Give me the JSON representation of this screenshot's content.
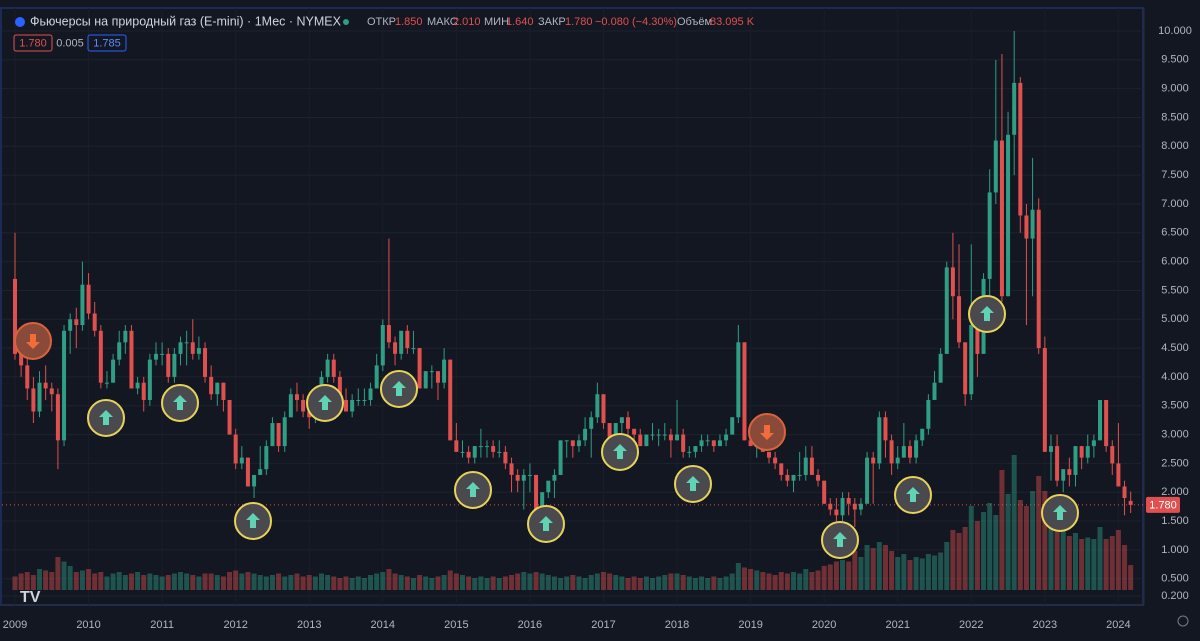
{
  "chart_data": {
    "type": "candlestick",
    "title": "Фьючерсы на природный газ (E-mini) · 1Мес · NYMEX",
    "legend": {
      "open_label": "ОТКР",
      "open": "1.850",
      "high_label": "МАКС",
      "high": "2.010",
      "low_label": "МИН",
      "low": "1.640",
      "close_label": "ЗАКР",
      "close": "1.780",
      "change": "−0.080 (−4.30%)",
      "volume_label": "Объём",
      "volume": "83.095 K"
    },
    "boxes": [
      "1.780",
      "0.005",
      "1.785"
    ],
    "last_price": {
      "value": 1.78,
      "label": "1.780"
    },
    "up_color": "#2f9e84",
    "down_color": "#e0504e",
    "yticks": [
      {
        "value": 10,
        "label": "10.000"
      },
      {
        "value": 9.5,
        "label": "9.500"
      },
      {
        "value": 9,
        "label": "9.000"
      },
      {
        "value": 8.5,
        "label": "8.500"
      },
      {
        "value": 8,
        "label": "8.000"
      },
      {
        "value": 7.5,
        "label": "7.500"
      },
      {
        "value": 7,
        "label": "7.000"
      },
      {
        "value": 6.5,
        "label": "6.500"
      },
      {
        "value": 6,
        "label": "6.000"
      },
      {
        "value": 5.5,
        "label": "5.500"
      },
      {
        "value": 5,
        "label": "5.000"
      },
      {
        "value": 4.5,
        "label": "4.500"
      },
      {
        "value": 4,
        "label": "4.000"
      },
      {
        "value": 3.5,
        "label": "3.500"
      },
      {
        "value": 3,
        "label": "3.000"
      },
      {
        "value": 2.5,
        "label": "2.500"
      },
      {
        "value": 2,
        "label": "2.000"
      },
      {
        "value": 1.5,
        "label": "1.500"
      },
      {
        "value": 1,
        "label": "1.000"
      },
      {
        "value": 0.5,
        "label": "0.500"
      },
      {
        "value": 0.2,
        "label": "0.200"
      }
    ],
    "ylim": [
      0.2,
      10
    ],
    "xticks": [
      2009,
      2010,
      2011,
      2012,
      2013,
      2014,
      2015,
      2016,
      2017,
      2018,
      2019,
      2020,
      2021,
      2022,
      2023,
      2024
    ],
    "candles": [
      [
        5.7,
        6.5,
        4.3,
        4.4
      ],
      [
        4.4,
        4.7,
        4.0,
        4.2
      ],
      [
        4.2,
        4.4,
        3.6,
        3.8
      ],
      [
        3.8,
        4.0,
        3.2,
        3.4
      ],
      [
        3.4,
        4.1,
        3.3,
        3.9
      ],
      [
        3.9,
        4.2,
        3.6,
        3.8
      ],
      [
        3.8,
        3.9,
        3.4,
        3.7
      ],
      [
        3.7,
        3.8,
        2.4,
        2.9
      ],
      [
        2.9,
        4.9,
        2.8,
        4.8
      ],
      [
        4.8,
        5.1,
        4.4,
        5.0
      ],
      [
        5.0,
        5.2,
        4.5,
        4.9
      ],
      [
        4.9,
        6.0,
        4.8,
        5.6
      ],
      [
        5.6,
        5.8,
        5.0,
        5.1
      ],
      [
        5.1,
        5.3,
        4.7,
        4.8
      ],
      [
        4.8,
        4.9,
        3.8,
        3.9
      ],
      [
        3.9,
        4.1,
        3.8,
        3.9
      ],
      [
        3.9,
        4.4,
        3.9,
        4.3
      ],
      [
        4.3,
        4.8,
        4.2,
        4.6
      ],
      [
        4.6,
        4.9,
        4.4,
        4.8
      ],
      [
        4.8,
        4.9,
        3.8,
        3.8
      ],
      [
        3.8,
        4.0,
        3.7,
        3.9
      ],
      [
        3.9,
        4.0,
        3.4,
        3.6
      ],
      [
        3.6,
        4.4,
        3.5,
        4.3
      ],
      [
        4.3,
        4.6,
        4.2,
        4.4
      ],
      [
        4.4,
        4.6,
        4.2,
        4.4
      ],
      [
        4.4,
        4.5,
        3.9,
        4.0
      ],
      [
        4.0,
        4.5,
        3.9,
        4.4
      ],
      [
        4.4,
        4.7,
        4.2,
        4.6
      ],
      [
        4.6,
        4.8,
        4.2,
        4.6
      ],
      [
        4.6,
        5.0,
        4.3,
        4.4
      ],
      [
        4.4,
        4.7,
        4.3,
        4.5
      ],
      [
        4.5,
        4.6,
        3.9,
        4.0
      ],
      [
        4.0,
        4.2,
        3.6,
        3.7
      ],
      [
        3.7,
        3.9,
        3.5,
        3.9
      ],
      [
        3.9,
        3.9,
        3.4,
        3.6
      ],
      [
        3.6,
        3.6,
        3.0,
        3.0
      ],
      [
        3.0,
        3.1,
        2.4,
        2.5
      ],
      [
        2.5,
        2.8,
        2.4,
        2.6
      ],
      [
        2.6,
        2.6,
        2.1,
        2.1
      ],
      [
        2.1,
        2.3,
        1.9,
        2.3
      ],
      [
        2.3,
        2.8,
        2.3,
        2.4
      ],
      [
        2.4,
        2.9,
        2.3,
        2.8
      ],
      [
        2.8,
        3.3,
        2.8,
        3.2
      ],
      [
        3.2,
        3.2,
        2.7,
        2.8
      ],
      [
        2.8,
        3.4,
        2.7,
        3.3
      ],
      [
        3.3,
        3.8,
        3.3,
        3.7
      ],
      [
        3.7,
        3.9,
        3.4,
        3.6
      ],
      [
        3.6,
        3.7,
        3.3,
        3.4
      ],
      [
        3.4,
        3.6,
        3.1,
        3.3
      ],
      [
        3.3,
        3.6,
        3.2,
        3.5
      ],
      [
        3.5,
        4.1,
        3.4,
        4.0
      ],
      [
        4.0,
        4.4,
        3.9,
        4.3
      ],
      [
        4.3,
        4.4,
        3.9,
        4.0
      ],
      [
        4.0,
        4.1,
        3.6,
        3.6
      ],
      [
        3.6,
        3.8,
        3.4,
        3.4
      ],
      [
        3.4,
        3.7,
        3.3,
        3.6
      ],
      [
        3.6,
        3.8,
        3.5,
        3.6
      ],
      [
        3.6,
        3.8,
        3.5,
        3.6
      ],
      [
        3.6,
        3.9,
        3.5,
        3.8
      ],
      [
        3.8,
        4.4,
        3.8,
        4.2
      ],
      [
        4.2,
        5.0,
        4.1,
        4.9
      ],
      [
        4.9,
        6.4,
        4.5,
        4.6
      ],
      [
        4.6,
        4.7,
        4.2,
        4.4
      ],
      [
        4.4,
        4.8,
        4.3,
        4.8
      ],
      [
        4.8,
        4.9,
        4.4,
        4.5
      ],
      [
        4.5,
        4.8,
        4.4,
        4.5
      ],
      [
        4.5,
        4.5,
        3.8,
        3.8
      ],
      [
        3.8,
        4.1,
        3.8,
        4.1
      ],
      [
        4.1,
        4.2,
        3.8,
        4.1
      ],
      [
        4.1,
        4.1,
        3.6,
        3.9
      ],
      [
        3.9,
        4.5,
        3.8,
        4.3
      ],
      [
        4.3,
        4.3,
        2.9,
        2.9
      ],
      [
        2.9,
        3.2,
        2.7,
        2.7
      ],
      [
        2.7,
        2.9,
        2.6,
        2.7
      ],
      [
        2.7,
        2.8,
        2.5,
        2.6
      ],
      [
        2.6,
        2.8,
        2.5,
        2.8
      ],
      [
        2.8,
        3.1,
        2.6,
        2.8
      ],
      [
        2.8,
        2.9,
        2.6,
        2.8
      ],
      [
        2.8,
        2.9,
        2.6,
        2.7
      ],
      [
        2.7,
        2.9,
        2.6,
        2.7
      ],
      [
        2.7,
        2.8,
        2.4,
        2.5
      ],
      [
        2.5,
        2.6,
        2.0,
        2.3
      ],
      [
        2.3,
        2.4,
        2.0,
        2.2
      ],
      [
        2.2,
        2.4,
        1.7,
        2.3
      ],
      [
        2.3,
        2.5,
        2.0,
        2.3
      ],
      [
        2.3,
        2.3,
        1.7,
        1.7
      ],
      [
        1.7,
        2.0,
        1.6,
        2.0
      ],
      [
        2.0,
        2.2,
        1.9,
        2.2
      ],
      [
        2.2,
        2.4,
        1.9,
        2.3
      ],
      [
        2.3,
        2.9,
        2.3,
        2.9
      ],
      [
        2.9,
        2.9,
        2.6,
        2.9
      ],
      [
        2.9,
        2.9,
        2.6,
        2.8
      ],
      [
        2.8,
        3.0,
        2.7,
        2.9
      ],
      [
        2.9,
        3.3,
        2.8,
        3.1
      ],
      [
        3.1,
        3.4,
        2.6,
        3.3
      ],
      [
        3.3,
        3.9,
        3.2,
        3.7
      ],
      [
        3.7,
        3.7,
        3.1,
        3.2
      ],
      [
        3.2,
        3.2,
        2.5,
        2.8
      ],
      [
        2.8,
        3.2,
        2.6,
        3.2
      ],
      [
        3.2,
        3.3,
        3.0,
        3.3
      ],
      [
        3.3,
        3.4,
        3.0,
        3.1
      ],
      [
        3.1,
        3.1,
        2.9,
        3.0
      ],
      [
        3.0,
        3.1,
        2.8,
        2.8
      ],
      [
        2.8,
        3.0,
        2.8,
        3.0
      ],
      [
        3.0,
        3.2,
        2.9,
        3.0
      ],
      [
        3.0,
        3.1,
        2.8,
        3.0
      ],
      [
        3.0,
        3.2,
        2.9,
        3.0
      ],
      [
        3.0,
        3.1,
        2.6,
        2.9
      ],
      [
        2.9,
        3.6,
        2.9,
        3.0
      ],
      [
        3.0,
        3.1,
        2.6,
        2.7
      ],
      [
        2.7,
        2.8,
        2.6,
        2.7
      ],
      [
        2.7,
        2.8,
        2.6,
        2.8
      ],
      [
        2.8,
        3.0,
        2.7,
        2.9
      ],
      [
        2.9,
        3.0,
        2.8,
        2.9
      ],
      [
        2.9,
        2.9,
        2.7,
        2.8
      ],
      [
        2.8,
        3.0,
        2.8,
        2.9
      ],
      [
        2.9,
        3.1,
        2.8,
        3.0
      ],
      [
        3.0,
        3.3,
        3.0,
        3.3
      ],
      [
        3.3,
        4.9,
        3.2,
        4.6
      ],
      [
        4.6,
        4.6,
        2.9,
        2.9
      ],
      [
        2.9,
        3.1,
        2.8,
        2.8
      ],
      [
        2.8,
        2.9,
        2.6,
        2.8
      ],
      [
        2.8,
        2.9,
        2.7,
        2.7
      ],
      [
        2.7,
        2.7,
        2.5,
        2.6
      ],
      [
        2.6,
        2.7,
        2.4,
        2.5
      ],
      [
        2.5,
        2.5,
        2.2,
        2.3
      ],
      [
        2.3,
        2.4,
        2.1,
        2.2
      ],
      [
        2.2,
        2.3,
        2.0,
        2.3
      ],
      [
        2.3,
        2.7,
        2.2,
        2.3
      ],
      [
        2.3,
        2.8,
        2.2,
        2.6
      ],
      [
        2.6,
        2.8,
        2.3,
        2.3
      ],
      [
        2.3,
        2.4,
        2.1,
        2.2
      ],
      [
        2.2,
        2.2,
        1.8,
        1.8
      ],
      [
        1.8,
        1.9,
        1.6,
        1.7
      ],
      [
        1.7,
        1.9,
        1.5,
        1.6
      ],
      [
        1.6,
        2.0,
        1.5,
        1.9
      ],
      [
        1.9,
        2.0,
        1.6,
        1.8
      ],
      [
        1.8,
        1.9,
        1.4,
        1.7
      ],
      [
        1.7,
        1.9,
        1.6,
        1.8
      ],
      [
        1.8,
        2.7,
        1.8,
        2.6
      ],
      [
        2.6,
        2.7,
        1.8,
        2.5
      ],
      [
        2.5,
        3.4,
        2.4,
        3.3
      ],
      [
        3.3,
        3.4,
        2.6,
        2.9
      ],
      [
        2.9,
        3.0,
        2.3,
        2.5
      ],
      [
        2.5,
        2.8,
        2.4,
        2.6
      ],
      [
        2.6,
        3.2,
        2.6,
        2.8
      ],
      [
        2.8,
        2.9,
        2.5,
        2.6
      ],
      [
        2.6,
        3.0,
        2.5,
        2.9
      ],
      [
        2.9,
        3.1,
        2.8,
        3.1
      ],
      [
        3.1,
        3.7,
        3.0,
        3.6
      ],
      [
        3.6,
        4.1,
        3.6,
        3.9
      ],
      [
        3.9,
        4.5,
        3.9,
        4.4
      ],
      [
        4.4,
        6.0,
        4.4,
        5.9
      ],
      [
        5.9,
        6.5,
        5.0,
        5.4
      ],
      [
        5.4,
        6.3,
        4.5,
        4.6
      ],
      [
        4.6,
        4.6,
        3.5,
        3.7
      ],
      [
        3.7,
        6.3,
        3.6,
        4.9
      ],
      [
        4.9,
        5.0,
        4.0,
        4.4
      ],
      [
        4.4,
        5.8,
        4.4,
        5.7
      ],
      [
        5.7,
        7.6,
        5.3,
        7.2
      ],
      [
        7.2,
        9.5,
        7.0,
        8.1
      ],
      [
        8.1,
        9.6,
        5.3,
        5.4
      ],
      [
        5.4,
        8.6,
        5.4,
        8.2
      ],
      [
        8.2,
        10.0,
        7.5,
        9.1
      ],
      [
        9.1,
        9.2,
        6.5,
        6.8
      ],
      [
        6.8,
        7.0,
        4.9,
        6.4
      ],
      [
        6.4,
        7.8,
        5.4,
        6.9
      ],
      [
        6.9,
        7.1,
        4.4,
        4.5
      ],
      [
        4.5,
        4.7,
        2.7,
        2.7
      ],
      [
        2.7,
        3.0,
        2.2,
        2.8
      ],
      [
        2.8,
        3.0,
        2.1,
        2.2
      ],
      [
        2.2,
        2.4,
        2.0,
        2.4
      ],
      [
        2.4,
        2.6,
        2.1,
        2.3
      ],
      [
        2.3,
        2.8,
        2.1,
        2.8
      ],
      [
        2.8,
        2.8,
        2.4,
        2.6
      ],
      [
        2.6,
        3.0,
        2.5,
        2.8
      ],
      [
        2.8,
        3.0,
        2.6,
        2.9
      ],
      [
        2.9,
        3.6,
        2.9,
        3.6
      ],
      [
        3.6,
        3.6,
        2.7,
        2.8
      ],
      [
        2.8,
        2.9,
        2.3,
        2.5
      ],
      [
        2.5,
        3.2,
        2.1,
        2.1
      ],
      [
        2.1,
        2.2,
        1.6,
        1.9
      ],
      [
        1.85,
        2.01,
        1.64,
        1.78
      ]
    ],
    "volume": [
      45,
      55,
      60,
      50,
      70,
      65,
      60,
      110,
      95,
      80,
      60,
      65,
      70,
      55,
      60,
      45,
      55,
      60,
      50,
      55,
      60,
      50,
      55,
      50,
      45,
      50,
      55,
      60,
      55,
      50,
      45,
      55,
      55,
      50,
      45,
      60,
      65,
      55,
      60,
      55,
      50,
      45,
      50,
      55,
      45,
      50,
      55,
      45,
      50,
      45,
      55,
      50,
      45,
      40,
      45,
      40,
      45,
      40,
      50,
      55,
      60,
      70,
      55,
      50,
      45,
      40,
      50,
      45,
      40,
      45,
      50,
      65,
      55,
      50,
      45,
      40,
      45,
      40,
      45,
      40,
      45,
      50,
      55,
      60,
      55,
      60,
      55,
      50,
      45,
      40,
      45,
      50,
      45,
      40,
      50,
      55,
      60,
      55,
      50,
      45,
      40,
      45,
      40,
      45,
      40,
      45,
      50,
      55,
      55,
      50,
      45,
      40,
      45,
      40,
      45,
      40,
      45,
      55,
      90,
      75,
      70,
      65,
      60,
      55,
      50,
      60,
      55,
      60,
      55,
      70,
      60,
      65,
      80,
      85,
      95,
      100,
      95,
      130,
      110,
      150,
      140,
      160,
      150,
      130,
      110,
      120,
      100,
      110,
      105,
      120,
      115,
      125,
      160,
      200,
      190,
      210,
      280,
      230,
      260,
      290,
      250,
      400,
      320,
      450,
      300,
      280,
      330,
      380,
      330,
      260,
      220,
      200,
      180,
      190,
      170,
      175,
      170,
      210,
      170,
      180,
      200,
      150,
      83.095
    ]
  }
}
